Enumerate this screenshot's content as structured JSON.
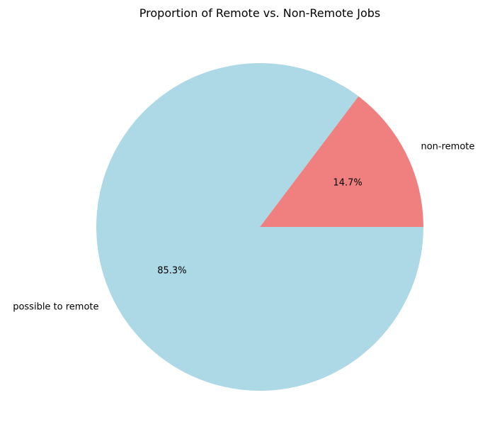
{
  "chart_data": {
    "type": "pie",
    "title": "Proportion of Remote vs. Non-Remote Jobs",
    "start_angle_deg": 0,
    "direction": "counterclockwise",
    "slices": [
      {
        "label": "non-remote",
        "value": 14.7,
        "percent_label": "14.7%",
        "color": "#f08080"
      },
      {
        "label": "possible to remote",
        "value": 85.3,
        "percent_label": "85.3%",
        "color": "#add8e6"
      }
    ]
  }
}
